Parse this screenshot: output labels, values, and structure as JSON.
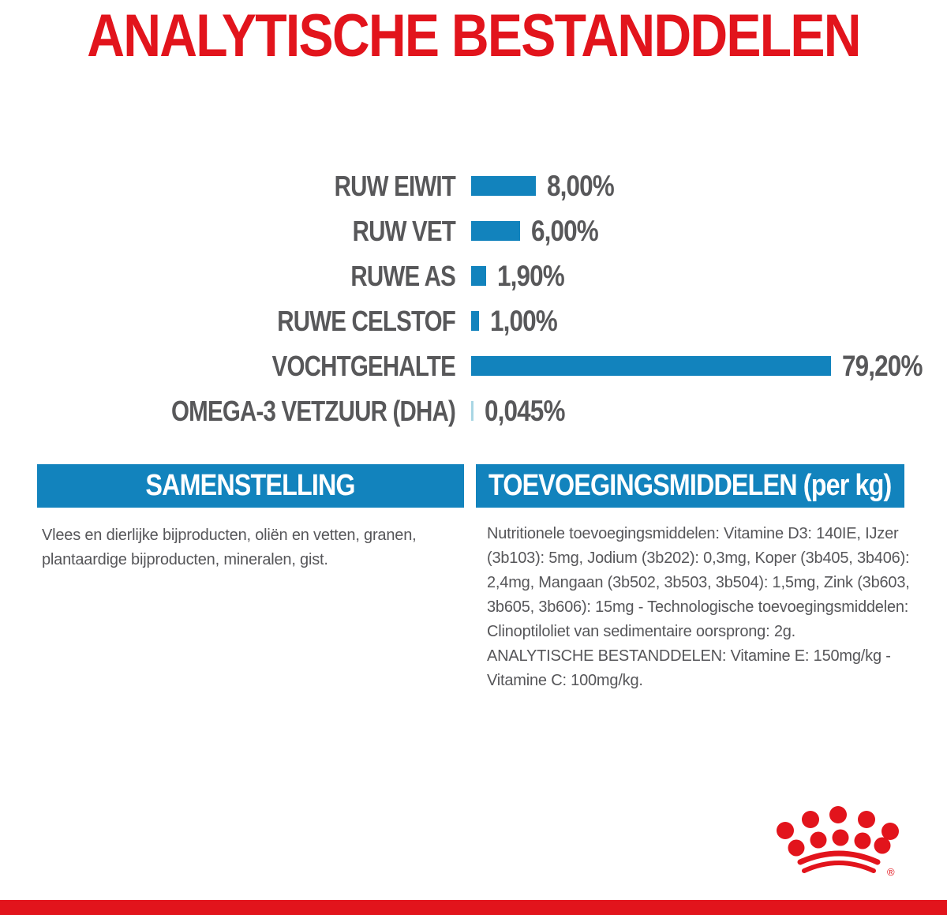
{
  "title": "ANALYTISCHE BESTANDDELEN",
  "chart_data": {
    "type": "bar",
    "orientation": "horizontal",
    "categories": [
      "RUW EIWIT",
      "RUW VET",
      "RUWE AS",
      "RUWE CELSTOF",
      "VOCHTGEHALTE",
      "OMEGA-3 VETZUUR (DHA)"
    ],
    "values": [
      8.0,
      6.0,
      1.9,
      1.0,
      79.2,
      0.045
    ],
    "value_labels": [
      "8,00%",
      "6,00%",
      "1,90%",
      "1,00%",
      "79,20%",
      "0,045%"
    ],
    "light_flags": [
      false,
      false,
      false,
      false,
      false,
      true
    ],
    "unit": "%",
    "title": "ANALYTISCHE BESTANDDELEN",
    "xlabel": "",
    "ylabel": "",
    "legend": "none",
    "grid": false,
    "bar_color": "#1283bd",
    "bar_color_light": "#a9d6e4"
  },
  "sections": {
    "composition": {
      "heading": "SAMENSTELLING",
      "body": "Vlees en dierlijke bijproducten, oliën en vetten, granen, plantaardige bijproducten, mineralen, gist."
    },
    "additives": {
      "heading": "TOEVOEGINGSMIDDELEN (per kg)",
      "body_1": "Nutritionele toevoegingsmiddelen: Vitamine D3: 140IE, IJzer (3b103): 5mg, Jodium (3b202): 0,3mg, Koper (3b405, 3b406): 2,4mg, Mangaan (3b502, 3b503, 3b504): 1,5mg, Zink (3b603, 3b605, 3b606): 15mg - Technologische toevoegingsmiddelen: Clinoptiloliet van sedimentaire oorsprong: 2g.",
      "body_2": "ANALYTISCHE BESTANDDELEN: Vitamine E: 150mg/kg - Vitamine C: 100mg/kg."
    }
  },
  "brand": {
    "logo": "royal-canin-crown",
    "registered_mark": "®"
  },
  "colors": {
    "red": "#e2141c",
    "blue": "#1283bd",
    "light_blue": "#a9d6e4",
    "label_gray": "#58585a",
    "body_gray": "#565659",
    "background": "#ffffff"
  }
}
